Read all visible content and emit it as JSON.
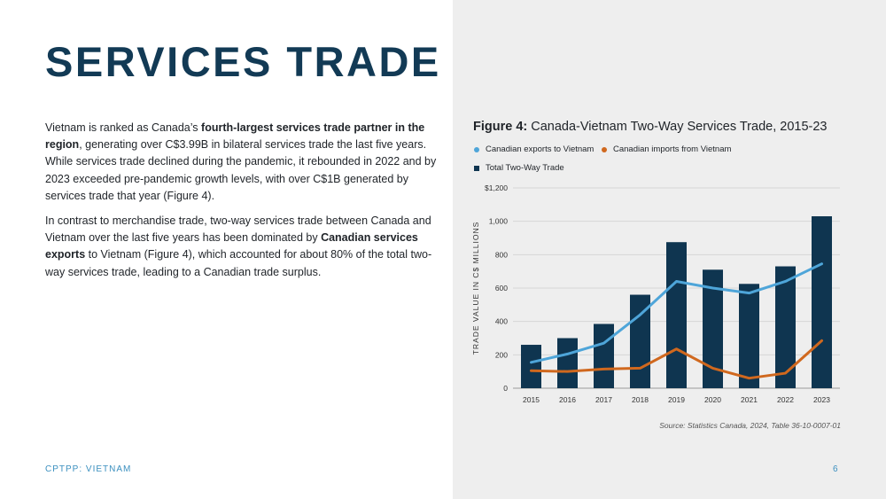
{
  "page": {
    "title": "SERVICES TRADE",
    "p1": [
      {
        "text": "Vietnam is ranked as Canada’s ",
        "bold": false
      },
      {
        "text": "fourth-largest services trade partner in the region",
        "bold": true
      },
      {
        "text": ", generating over C$3.99B in bilateral services trade the last five years. While services trade declined during the pandemic, it rebounded in 2022 and by 2023 exceeded pre-pandemic growth levels, with over C$1B generated by services trade that year (Figure 4).",
        "bold": false
      }
    ],
    "p2": [
      {
        "text": "In contrast to merchandise trade, two-way services trade between Canada and Vietnam over the last five years has been dominated by ",
        "bold": false
      },
      {
        "text": "Canadian services exports",
        "bold": true
      },
      {
        "text": " to Vietnam (Figure 4), which accounted for about 80% of the total two-way services trade, leading to a Canadian trade surplus.",
        "bold": false
      }
    ],
    "footer_left": "CPTPP: VIETNAM",
    "page_number": "6"
  },
  "figure": {
    "label": "Figure 4:",
    "title": "Canada-Vietnam Two-Way Services Trade, 2015-23",
    "source": "Source: Statistics Canada, 2024, Table 36-10-0007-01"
  },
  "chart_data": {
    "type": "bar",
    "title": "Canada-Vietnam Two-Way Services Trade, 2015-23",
    "categories": [
      "2015",
      "2016",
      "2017",
      "2018",
      "2019",
      "2020",
      "2021",
      "2022",
      "2023"
    ],
    "ylabel": "TRADE VALUE IN C$ MILLIONS",
    "ylim": [
      0,
      1200
    ],
    "yticks": [
      0,
      200,
      400,
      600,
      800,
      1000,
      1200
    ],
    "ytick_labels": [
      "0",
      "200",
      "400",
      "600",
      "800",
      "1,000",
      "$1,200"
    ],
    "grid": true,
    "legend_position": "top-left",
    "series": [
      {
        "name": "Canadian exports to Vietnam",
        "kind": "line",
        "color": "#4ea5d9",
        "values": [
          155,
          205,
          270,
          440,
          640,
          600,
          570,
          640,
          745
        ]
      },
      {
        "name": "Canadian imports from Vietnam",
        "kind": "line",
        "color": "#d0681e",
        "values": [
          105,
          100,
          115,
          120,
          235,
          120,
          60,
          90,
          285
        ]
      },
      {
        "name": "Total Two-Way Trade",
        "kind": "bar",
        "color": "#0f3550",
        "values": [
          260,
          300,
          385,
          560,
          875,
          710,
          625,
          730,
          1030
        ]
      }
    ]
  }
}
